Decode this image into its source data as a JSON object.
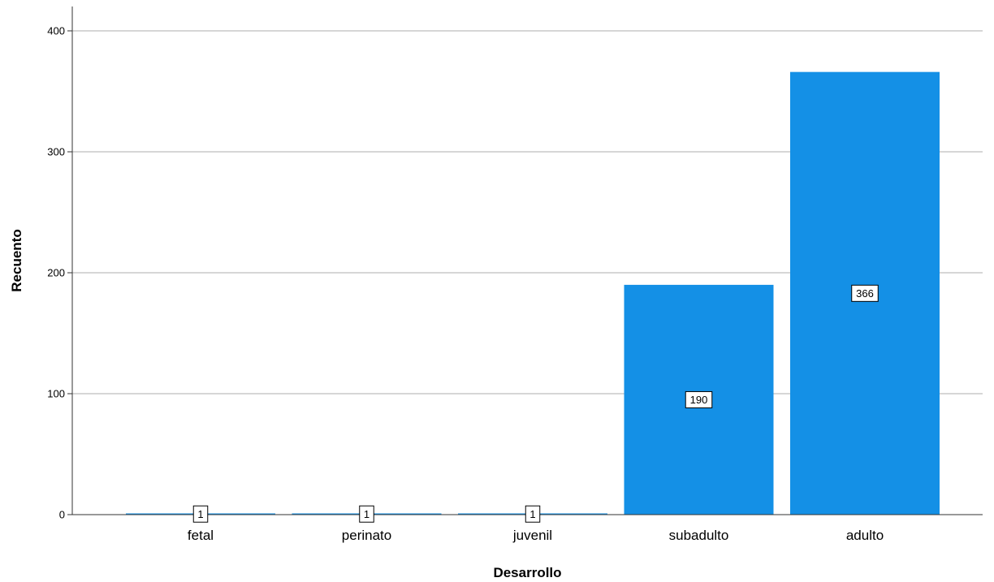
{
  "chart_data": {
    "type": "bar",
    "categories": [
      "fetal",
      "perinato",
      "juvenil",
      "subadulto",
      "adulto"
    ],
    "values": [
      1,
      1,
      1,
      190,
      366
    ],
    "data_labels": [
      "1",
      "1",
      "1",
      "190",
      "366"
    ],
    "xlabel": "Desarrollo",
    "ylabel": "Recuento",
    "ylim": [
      0,
      420
    ],
    "yticks": [
      0,
      100,
      200,
      300,
      400
    ],
    "ytick_labels": [
      "0",
      "100",
      "200",
      "300",
      "400"
    ],
    "grid": "horizontal",
    "bar_color": "#1490E6",
    "grid_color": "#C8C8C8",
    "axis_color": "#333333"
  }
}
